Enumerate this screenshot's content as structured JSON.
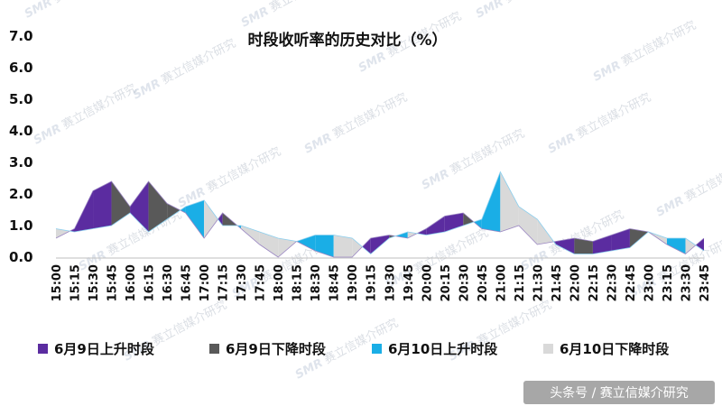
{
  "chart_data": {
    "type": "area",
    "title": "时段收听率的历史对比（%）",
    "xlabel": "",
    "ylabel": "",
    "ylim": [
      0,
      7
    ],
    "yticks": [
      "0.0",
      "1.0",
      "2.0",
      "3.0",
      "4.0",
      "5.0",
      "6.0",
      "7.0"
    ],
    "xtick_labels": [
      "15:00",
      "15:15",
      "15:30",
      "15:45",
      "16:00",
      "16:15",
      "16:30",
      "16:45",
      "17:00",
      "17:15",
      "17:30",
      "17:45",
      "18:00",
      "18:15",
      "18:30",
      "18:45",
      "19:00",
      "19:15",
      "19:30",
      "19:45",
      "20:00",
      "20:15",
      "20:30",
      "20:45",
      "21:00",
      "21:15",
      "21:30",
      "21:45",
      "22:00",
      "22:15",
      "22:30",
      "22:45",
      "23:00",
      "23:15",
      "23:30",
      "23:45"
    ],
    "legend_position": "bottom",
    "grid": false,
    "series": [
      {
        "name": "6月9日",
        "color": "#5b2ca0"
      },
      {
        "name": "6月10日",
        "color": "#1aaee6"
      }
    ],
    "june9": [
      0.6,
      0.9,
      2.1,
      2.4,
      1.6,
      2.4,
      1.7,
      1.4,
      0.6,
      1.4,
      0.9,
      0.4,
      0.0,
      0.5,
      0.2,
      0.0,
      0.0,
      0.6,
      0.7,
      0.6,
      0.9,
      1.3,
      1.4,
      0.9,
      0.8,
      1.0,
      0.4,
      0.5,
      0.6,
      0.5,
      0.7,
      0.9,
      0.8,
      0.4,
      0.1,
      0.6
    ],
    "june10": [
      0.9,
      0.8,
      0.9,
      1.0,
      1.4,
      0.8,
      1.2,
      1.6,
      1.8,
      1.0,
      1.0,
      0.8,
      0.6,
      0.5,
      0.7,
      0.7,
      0.6,
      0.1,
      0.6,
      0.8,
      0.7,
      0.8,
      1.0,
      1.2,
      2.7,
      1.6,
      1.2,
      0.4,
      0.1,
      0.1,
      0.2,
      0.3,
      0.8,
      0.6,
      0.6,
      0.2
    ],
    "legend": [
      {
        "label": "6月9日上升时段",
        "color": "#5b2ca0"
      },
      {
        "label": "6月9日下降时段",
        "color": "#595959"
      },
      {
        "label": "6月10日上升时段",
        "color": "#1aaee6"
      },
      {
        "label": "6月10日下降时段",
        "color": "#d9d9d9"
      }
    ]
  },
  "watermark": {
    "logo_text": "SMR",
    "org_text": "赛立信媒介研究"
  },
  "footer": {
    "text": "头条号 / 赛立信媒介研究"
  }
}
